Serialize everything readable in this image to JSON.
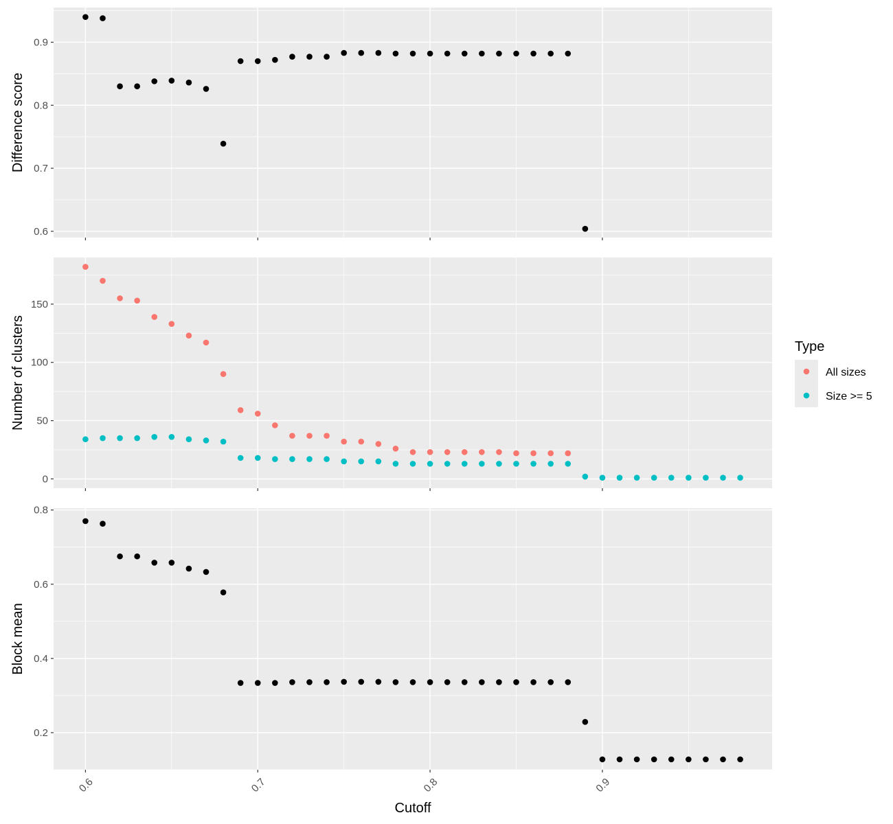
{
  "chart_data": {
    "type": "scatter",
    "xlabel": "Cutoff",
    "x_ticks": [
      "0.6",
      "0.7",
      "0.8",
      "0.9"
    ],
    "xlim": [
      0.5815,
      0.9985
    ],
    "grid": true,
    "legend": {
      "title": "Type",
      "placement": "right",
      "entries": [
        {
          "label": "All sizes",
          "color": "#F8766D"
        },
        {
          "label": "Size >= 5",
          "color": "#00BFC4"
        }
      ]
    },
    "panels": [
      {
        "ylabel": "Difference score",
        "ylim": [
          0.59,
          0.955
        ],
        "y_ticks": [
          "0.6",
          "0.7",
          "0.8",
          "0.9"
        ],
        "series": [
          {
            "color": "#000000",
            "x": [
              0.6,
              0.61,
              0.62,
              0.63,
              0.64,
              0.65,
              0.66,
              0.67,
              0.68,
              0.69,
              0.7,
              0.71,
              0.72,
              0.73,
              0.74,
              0.75,
              0.76,
              0.77,
              0.78,
              0.79,
              0.8,
              0.81,
              0.82,
              0.83,
              0.84,
              0.85,
              0.86,
              0.87,
              0.88,
              0.89
            ],
            "y": [
              0.94,
              0.938,
              0.83,
              0.83,
              0.838,
              0.839,
              0.836,
              0.826,
              0.739,
              0.87,
              0.87,
              0.872,
              0.877,
              0.877,
              0.877,
              0.883,
              0.883,
              0.883,
              0.882,
              0.882,
              0.882,
              0.882,
              0.882,
              0.882,
              0.882,
              0.882,
              0.882,
              0.882,
              0.882,
              0.604
            ]
          }
        ]
      },
      {
        "ylabel": "Number of clusters",
        "ylim": [
          -8,
          190
        ],
        "y_ticks": [
          "0",
          "50",
          "100",
          "150"
        ],
        "series": [
          {
            "name": "All sizes",
            "color": "#F8766D",
            "x": [
              0.6,
              0.61,
              0.62,
              0.63,
              0.64,
              0.65,
              0.66,
              0.67,
              0.68,
              0.69,
              0.7,
              0.71,
              0.72,
              0.73,
              0.74,
              0.75,
              0.76,
              0.77,
              0.78,
              0.79,
              0.8,
              0.81,
              0.82,
              0.83,
              0.84,
              0.85,
              0.86,
              0.87,
              0.88
            ],
            "y": [
              182,
              170,
              155,
              153,
              139,
              133,
              123,
              117,
              90,
              59,
              56,
              46,
              37,
              37,
              37,
              32,
              32,
              30,
              26,
              23,
              23,
              23,
              23,
              23,
              23,
              22,
              22,
              22,
              22
            ]
          },
          {
            "name": "Size >= 5",
            "color": "#00BFC4",
            "x": [
              0.6,
              0.61,
              0.62,
              0.63,
              0.64,
              0.65,
              0.66,
              0.67,
              0.68,
              0.69,
              0.7,
              0.71,
              0.72,
              0.73,
              0.74,
              0.75,
              0.76,
              0.77,
              0.78,
              0.79,
              0.8,
              0.81,
              0.82,
              0.83,
              0.84,
              0.85,
              0.86,
              0.87,
              0.88,
              0.89,
              0.9,
              0.91,
              0.92,
              0.93,
              0.94,
              0.95,
              0.96,
              0.97,
              0.98
            ],
            "y": [
              34,
              35,
              35,
              35,
              36,
              36,
              34,
              33,
              32,
              18,
              18,
              17,
              17,
              17,
              17,
              15,
              15,
              15,
              13,
              13,
              13,
              13,
              13,
              13,
              13,
              13,
              13,
              13,
              13,
              2,
              1,
              1,
              1,
              1,
              1,
              1,
              1,
              1,
              1
            ]
          }
        ]
      },
      {
        "ylabel": "Block mean",
        "ylim": [
          0.1,
          0.805
        ],
        "y_ticks": [
          "0.2",
          "0.4",
          "0.6",
          "0.8"
        ],
        "series": [
          {
            "color": "#000000",
            "x": [
              0.6,
              0.61,
              0.62,
              0.63,
              0.64,
              0.65,
              0.66,
              0.67,
              0.68,
              0.69,
              0.7,
              0.71,
              0.72,
              0.73,
              0.74,
              0.75,
              0.76,
              0.77,
              0.78,
              0.79,
              0.8,
              0.81,
              0.82,
              0.83,
              0.84,
              0.85,
              0.86,
              0.87,
              0.88,
              0.89,
              0.9,
              0.91,
              0.92,
              0.93,
              0.94,
              0.95,
              0.96,
              0.97,
              0.98
            ],
            "y": [
              0.77,
              0.763,
              0.675,
              0.675,
              0.658,
              0.658,
              0.642,
              0.633,
              0.578,
              0.334,
              0.334,
              0.334,
              0.336,
              0.336,
              0.336,
              0.337,
              0.337,
              0.337,
              0.336,
              0.336,
              0.336,
              0.336,
              0.336,
              0.336,
              0.336,
              0.336,
              0.336,
              0.336,
              0.336,
              0.229,
              0.128,
              0.128,
              0.128,
              0.128,
              0.128,
              0.128,
              0.128,
              0.128,
              0.128
            ]
          }
        ]
      }
    ]
  }
}
